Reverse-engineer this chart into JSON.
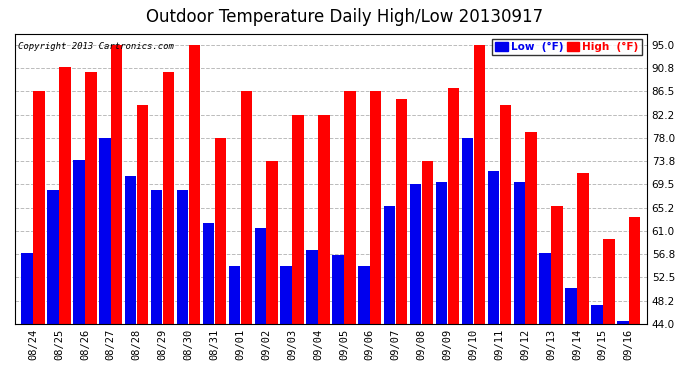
{
  "title": "Outdoor Temperature Daily High/Low 20130917",
  "copyright": "Copyright 2013 Cartronics.com",
  "dates": [
    "08/24",
    "08/25",
    "08/26",
    "08/27",
    "08/28",
    "08/29",
    "08/30",
    "08/31",
    "09/01",
    "09/02",
    "09/03",
    "09/04",
    "09/05",
    "09/06",
    "09/07",
    "09/08",
    "09/09",
    "09/10",
    "09/11",
    "09/12",
    "09/13",
    "09/14",
    "09/15",
    "09/16"
  ],
  "highs": [
    86.5,
    91.0,
    90.0,
    95.0,
    84.0,
    90.0,
    95.0,
    78.0,
    86.5,
    73.8,
    82.2,
    82.2,
    86.5,
    86.5,
    85.0,
    73.8,
    87.0,
    95.0,
    84.0,
    79.0,
    65.5,
    71.5,
    59.5,
    63.5
  ],
  "lows": [
    57.0,
    68.5,
    74.0,
    78.0,
    71.0,
    68.5,
    68.5,
    62.5,
    54.5,
    61.5,
    54.5,
    57.5,
    56.5,
    54.5,
    65.5,
    69.5,
    70.0,
    78.0,
    72.0,
    70.0,
    57.0,
    50.5,
    47.5,
    44.5
  ],
  "high_color": "#ff0000",
  "low_color": "#0000ee",
  "bg_color": "#ffffff",
  "plot_bg_color": "#ffffff",
  "grid_color": "#bbbbbb",
  "ymin": 44.0,
  "ymax": 97.0,
  "yticks": [
    44.0,
    48.2,
    52.5,
    56.8,
    61.0,
    65.2,
    69.5,
    73.8,
    78.0,
    82.2,
    86.5,
    90.8,
    95.0
  ],
  "title_fontsize": 12,
  "tick_fontsize": 7.5,
  "legend_low_label": "Low  (°F)",
  "legend_high_label": "High  (°F)"
}
